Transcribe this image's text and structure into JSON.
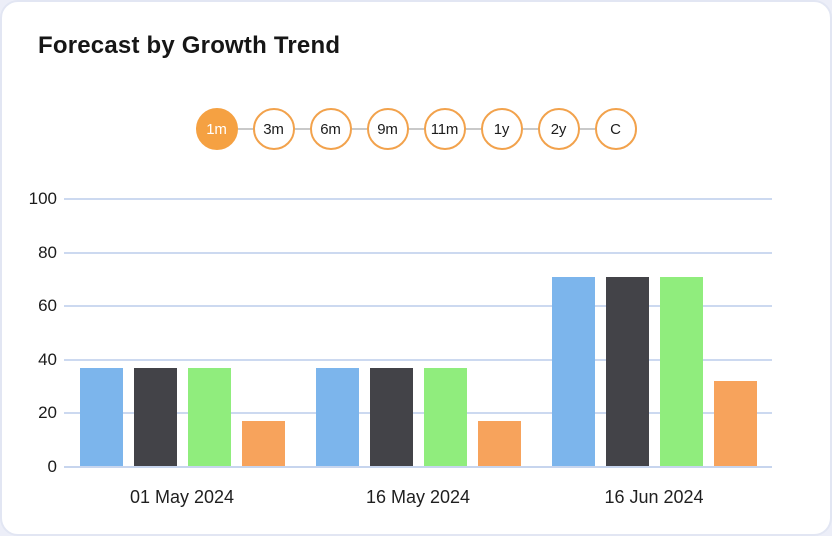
{
  "title": "Forecast by Growth Trend",
  "range_selector": {
    "options": [
      "1m",
      "3m",
      "6m",
      "9m",
      "11m",
      "1y",
      "2y",
      "C"
    ],
    "active": "1m",
    "accent_color": "#f2a24c",
    "active_fill_color": "#f5a142"
  },
  "chart_data": {
    "type": "bar",
    "title": "Forecast by Growth Trend",
    "categories": [
      "01 May 2024",
      "16 May 2024",
      "16 Jun 2024"
    ],
    "series": [
      {
        "color": "#7cb5ec",
        "values": [
          37,
          37,
          71
        ]
      },
      {
        "color": "#434348",
        "values": [
          37,
          37,
          71
        ]
      },
      {
        "color": "#90ed7d",
        "values": [
          37,
          37,
          71
        ]
      },
      {
        "color": "#f7a35c",
        "values": [
          17,
          17,
          32
        ]
      }
    ],
    "y_ticks": [
      0,
      20,
      40,
      60,
      80,
      100
    ],
    "ylim": [
      0,
      100
    ],
    "xlabel": "",
    "ylabel": "",
    "grid": "on",
    "legend": "none",
    "grid_color": "#ccd9f0"
  }
}
